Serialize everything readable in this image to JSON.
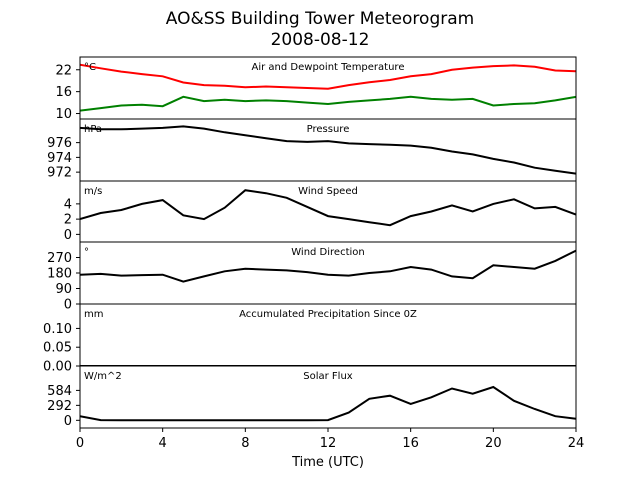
{
  "title": "AO&SS Building Tower Meteorogram",
  "subtitle": "2008-08-12",
  "chart_data": {
    "type": "line",
    "xlabel": "Time (UTC)",
    "x_ticks": [
      0,
      4,
      8,
      12,
      16,
      20,
      24
    ],
    "xlim": [
      0,
      24
    ],
    "panels": [
      {
        "title": "Air and Dewpoint Temperature",
        "unit": "°C",
        "ylim": [
          8.5,
          25.5
        ],
        "yticks": [
          10,
          16,
          22
        ],
        "series": [
          {
            "color": "#ff0000",
            "x": [
              0,
              1,
              2,
              3,
              4,
              5,
              6,
              7,
              8,
              9,
              10,
              11,
              12,
              13,
              14,
              15,
              16,
              17,
              18,
              19,
              20,
              21,
              22,
              23,
              24
            ],
            "y": [
              23.4,
              22.4,
              21.5,
              20.8,
              20.2,
              18.5,
              17.8,
              17.6,
              17.2,
              17.4,
              17.2,
              17.0,
              16.8,
              17.8,
              18.6,
              19.2,
              20.2,
              20.8,
              22.0,
              22.6,
              23.0,
              23.2,
              22.8,
              21.8,
              21.6
            ]
          },
          {
            "color": "#008000",
            "x": [
              0,
              1,
              2,
              3,
              4,
              5,
              6,
              7,
              8,
              9,
              10,
              11,
              12,
              13,
              14,
              15,
              16,
              17,
              18,
              19,
              20,
              21,
              22,
              23,
              24
            ],
            "y": [
              10.8,
              11.5,
              12.2,
              12.4,
              12.0,
              14.6,
              13.4,
              13.8,
              13.4,
              13.6,
              13.4,
              13.0,
              12.6,
              13.2,
              13.6,
              14.0,
              14.6,
              14.0,
              13.8,
              14.0,
              12.2,
              12.6,
              12.8,
              13.6,
              14.6
            ]
          }
        ]
      },
      {
        "title": "Pressure",
        "unit": "hPa",
        "ylim": [
          970.8,
          979.2
        ],
        "yticks": [
          972,
          974,
          976
        ],
        "series": [
          {
            "color": "#000000",
            "x": [
              0,
              1,
              2,
              3,
              4,
              5,
              6,
              7,
              8,
              9,
              10,
              11,
              12,
              13,
              14,
              15,
              16,
              17,
              18,
              19,
              20,
              21,
              22,
              23,
              24
            ],
            "y": [
              978.0,
              977.8,
              977.8,
              977.9,
              978.0,
              978.2,
              977.9,
              977.4,
              977.0,
              976.6,
              976.2,
              976.1,
              976.2,
              975.9,
              975.8,
              975.7,
              975.6,
              975.3,
              974.8,
              974.4,
              973.8,
              973.3,
              972.6,
              972.2,
              971.8
            ]
          }
        ]
      },
      {
        "title": "Wind Speed",
        "unit": "m/s",
        "ylim": [
          -1,
          7
        ],
        "yticks": [
          0,
          2,
          4
        ],
        "series": [
          {
            "color": "#000000",
            "x": [
              0,
              1,
              2,
              3,
              4,
              5,
              6,
              7,
              8,
              9,
              10,
              11,
              12,
              13,
              14,
              15,
              16,
              17,
              18,
              19,
              20,
              21,
              22,
              23,
              24
            ],
            "y": [
              2.0,
              2.8,
              3.2,
              4.0,
              4.5,
              2.5,
              2.0,
              3.5,
              5.8,
              5.4,
              4.8,
              3.6,
              2.4,
              2.0,
              1.6,
              1.2,
              2.4,
              3.0,
              3.8,
              3.0,
              4.0,
              4.6,
              3.4,
              3.6,
              2.6
            ]
          }
        ]
      },
      {
        "title": "Wind Direction",
        "unit": "°",
        "ylim": [
          0,
          360
        ],
        "yticks": [
          0,
          90,
          180,
          270
        ],
        "series": [
          {
            "color": "#000000",
            "x": [
              0,
              1,
              2,
              3,
              4,
              5,
              6,
              7,
              8,
              9,
              10,
              11,
              12,
              13,
              14,
              15,
              16,
              17,
              18,
              19,
              20,
              21,
              22,
              23,
              24
            ],
            "y": [
              170,
              175,
              165,
              168,
              170,
              130,
              160,
              190,
              205,
              200,
              195,
              185,
              170,
              165,
              180,
              190,
              215,
              200,
              160,
              150,
              225,
              215,
              205,
              250,
              310
            ]
          }
        ]
      },
      {
        "title": "Accumulated Precipitation Since 0Z",
        "unit": "mm",
        "ylim": [
          0,
          0.165
        ],
        "yticks": [
          0.0,
          0.05,
          0.1
        ],
        "ytick_labels": [
          "0.00",
          "0.05",
          "0.10"
        ],
        "series": [
          {
            "color": "#000000",
            "x": [
              0,
              24
            ],
            "y": [
              0,
              0
            ]
          }
        ]
      },
      {
        "title": "Solar Flux",
        "unit": "W/m^2",
        "ylim": [
          -150,
          1060
        ],
        "yticks": [
          0,
          292,
          584
        ],
        "series": [
          {
            "color": "#000000",
            "x": [
              0,
              1,
              2,
              3,
              4,
              5,
              6,
              7,
              8,
              9,
              10,
              11,
              12,
              13,
              14,
              15,
              16,
              17,
              18,
              19,
              20,
              21,
              22,
              23,
              24
            ],
            "y": [
              80,
              5,
              0,
              0,
              0,
              0,
              0,
              0,
              0,
              0,
              0,
              0,
              5,
              150,
              420,
              480,
              320,
              450,
              620,
              520,
              650,
              380,
              220,
              80,
              30
            ]
          }
        ]
      }
    ]
  }
}
